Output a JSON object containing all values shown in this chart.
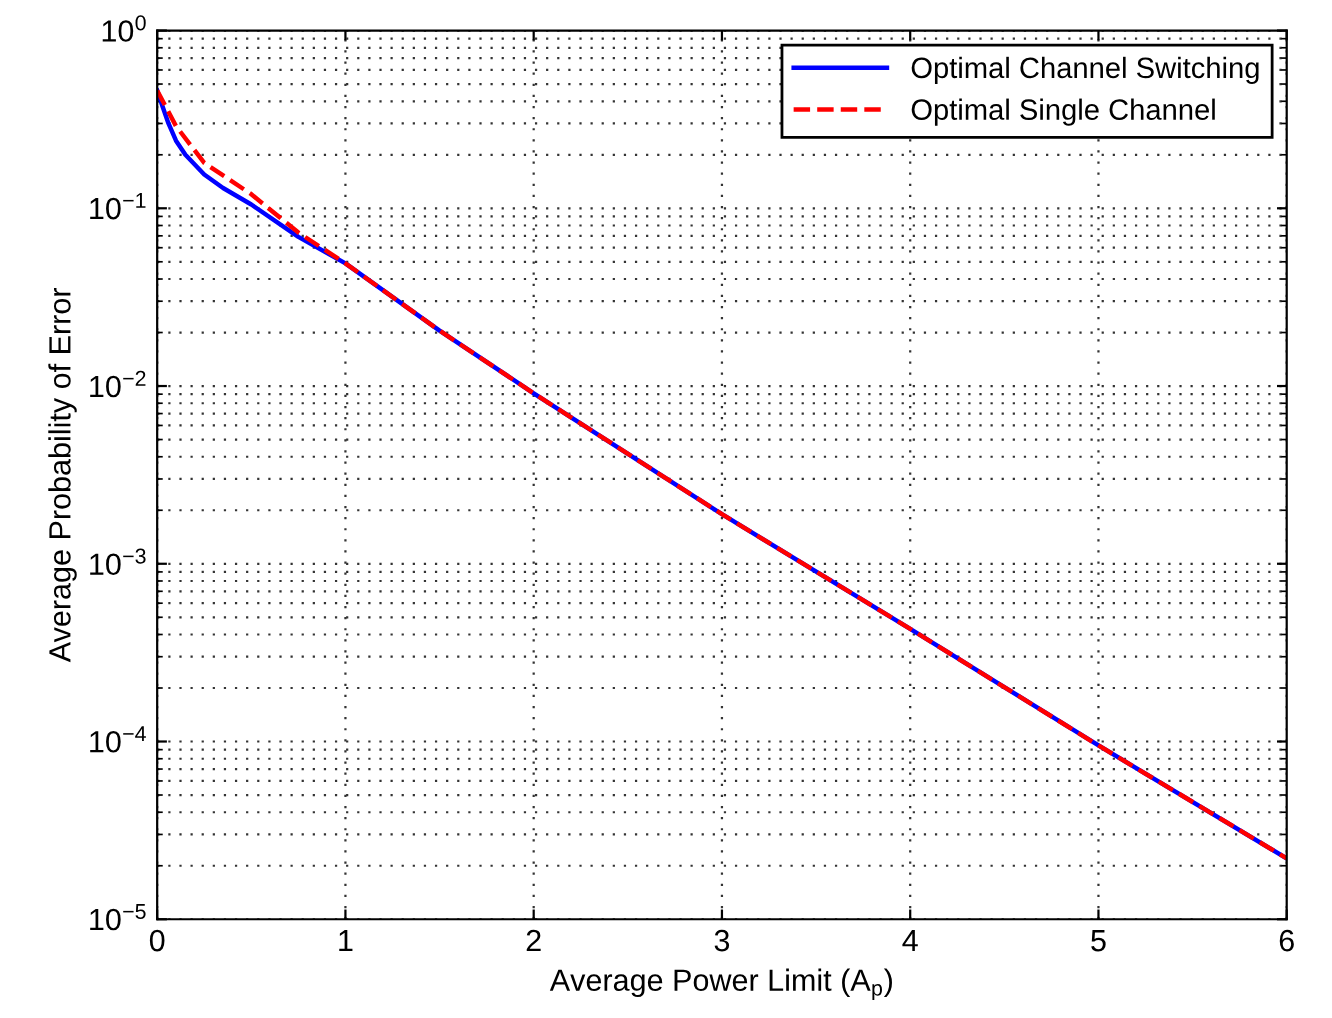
{
  "chart_data": {
    "type": "line",
    "xlabel": "Average Power Limit (A$_{p}$)",
    "ylabel": "Average Probability of Error",
    "log": "y",
    "grid": true,
    "legend": "top right",
    "xlim": [
      0,
      6
    ],
    "xticks": [
      0,
      1,
      2,
      3,
      4,
      5,
      6
    ],
    "ylim": [
      1e-05,
      1
    ],
    "yticks": [
      {
        "value": 1e-05,
        "label": "10$^{−5}$"
      },
      {
        "value": 0.0001,
        "label": "10$^{−4}$"
      },
      {
        "value": 0.001,
        "label": "10$^{−3}$"
      },
      {
        "value": 0.01,
        "label": "10$^{−2}$"
      },
      {
        "value": 0.1,
        "label": "10$^{−1}$"
      },
      {
        "value": 1,
        "label": "10$^{0}$"
      }
    ],
    "series": [
      {
        "name": "Optimal Channel Switching",
        "color": "#0000ff",
        "line_style": "solid",
        "x": [
          0,
          0.03,
          0.06,
          0.1,
          0.15,
          0.25,
          0.35,
          0.5,
          0.75,
          1,
          1.5,
          2,
          3,
          4,
          5,
          6
        ],
        "values": [
          0.46,
          0.37,
          0.3,
          0.24,
          0.2,
          0.155,
          0.13,
          0.105,
          0.069,
          0.049,
          0.0205,
          0.0091,
          0.0019,
          0.00043,
          9.5e-05,
          2.2e-05
        ]
      },
      {
        "name": "Optimal Single Channel",
        "color": "#ff0000",
        "line_style": "dashed",
        "x": [
          0,
          0.1,
          0.25,
          0.5,
          0.75,
          1,
          1.5,
          2,
          3,
          4,
          5,
          6
        ],
        "values": [
          0.46,
          0.29,
          0.18,
          0.12,
          0.073,
          0.049,
          0.0205,
          0.0091,
          0.0019,
          0.00043,
          9.5e-05,
          2.2e-05
        ]
      }
    ]
  }
}
